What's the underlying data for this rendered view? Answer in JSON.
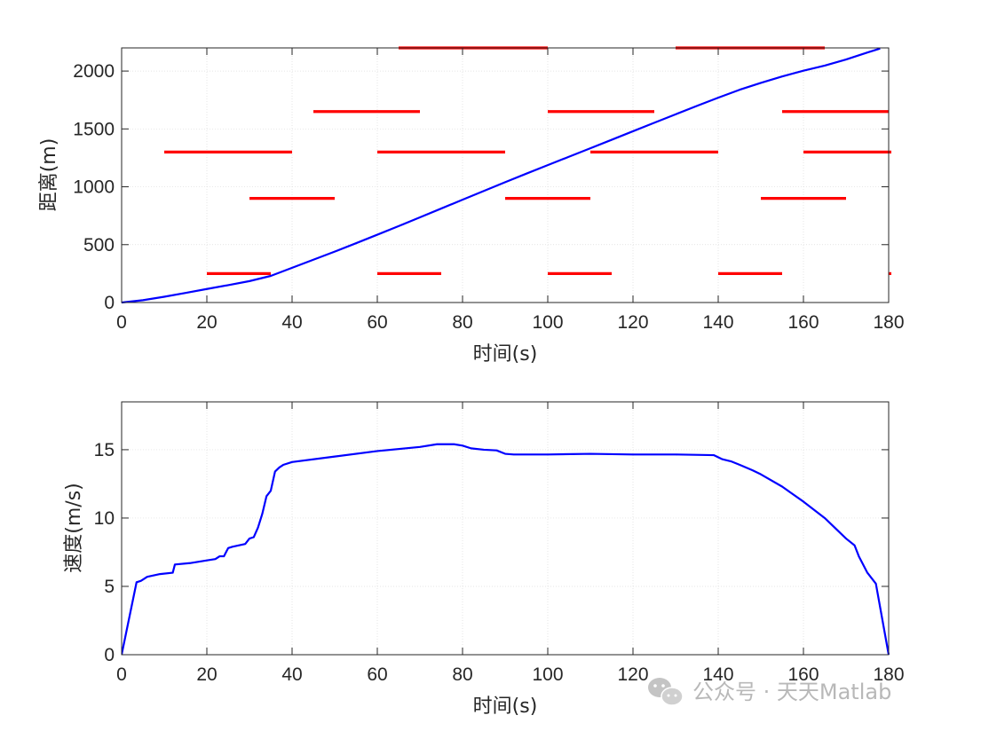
{
  "chart_data": [
    {
      "type": "line",
      "xlabel": "时间(s)",
      "ylabel": "距离(m)",
      "xlim": [
        0,
        180
      ],
      "ylim": [
        0,
        2200
      ],
      "xticks": [
        "0",
        "20",
        "40",
        "60",
        "80",
        "100",
        "120",
        "140",
        "160",
        "180"
      ],
      "yticks": [
        "0",
        "500",
        "1000",
        "1500",
        "2000"
      ],
      "grid": true,
      "series": [
        {
          "color": "#0000ff",
          "x": [
            0,
            5,
            10,
            15,
            20,
            25,
            30,
            35,
            40,
            45,
            50,
            55,
            60,
            65,
            70,
            75,
            80,
            85,
            90,
            95,
            100,
            105,
            110,
            115,
            120,
            125,
            130,
            135,
            140,
            145,
            150,
            155,
            160,
            165,
            170,
            175,
            178
          ],
          "y": [
            0,
            20,
            50,
            83,
            117,
            150,
            185,
            230,
            300,
            370,
            440,
            512,
            586,
            660,
            736,
            812,
            888,
            964,
            1040,
            1114,
            1187,
            1260,
            1333,
            1406,
            1480,
            1553,
            1626,
            1699,
            1770,
            1838,
            1898,
            1953,
            2003,
            2047,
            2100,
            2160,
            2195
          ]
        }
      ],
      "segments": {
        "color": "#ff0000",
        "items": [
          {
            "y": 250,
            "x1": 20,
            "x2": 35
          },
          {
            "y": 250,
            "x1": 60,
            "x2": 75
          },
          {
            "y": 250,
            "x1": 100,
            "x2": 115
          },
          {
            "y": 250,
            "x1": 140,
            "x2": 155
          },
          {
            "y": 250,
            "x1": 180,
            "x2": 181
          },
          {
            "y": 900,
            "x1": 30,
            "x2": 50
          },
          {
            "y": 900,
            "x1": 90,
            "x2": 110
          },
          {
            "y": 900,
            "x1": 150,
            "x2": 170
          },
          {
            "y": 1300,
            "x1": 10,
            "x2": 40
          },
          {
            "y": 1300,
            "x1": 60,
            "x2": 90
          },
          {
            "y": 1300,
            "x1": 110,
            "x2": 140
          },
          {
            "y": 1300,
            "x1": 160,
            "x2": 181
          },
          {
            "y": 1650,
            "x1": 45,
            "x2": 70
          },
          {
            "y": 1650,
            "x1": 100,
            "x2": 125
          },
          {
            "y": 1650,
            "x1": 155,
            "x2": 180
          },
          {
            "y": 2200,
            "x1": 65,
            "x2": 100
          },
          {
            "y": 2200,
            "x1": 130,
            "x2": 165
          }
        ]
      }
    },
    {
      "type": "line",
      "xlabel": "时间(s)",
      "ylabel": "速度(m/s)",
      "xlim": [
        0,
        180
      ],
      "ylim": [
        0,
        18.5
      ],
      "xticks": [
        "0",
        "20",
        "40",
        "60",
        "80",
        "100",
        "120",
        "140",
        "160",
        "180"
      ],
      "yticks": [
        "0",
        "5",
        "10",
        "15"
      ],
      "grid": true,
      "series": [
        {
          "color": "#0000ff",
          "x": [
            0,
            3.5,
            4.5,
            5,
            6,
            9,
            12,
            12.5,
            16,
            20,
            22,
            23,
            24,
            25,
            26,
            29,
            30,
            31,
            32,
            33,
            34,
            35,
            36,
            37,
            38,
            40,
            50,
            60,
            70,
            74,
            78,
            80,
            82,
            85,
            88,
            90,
            92,
            100,
            110,
            120,
            130,
            139,
            141,
            143,
            145,
            148,
            150,
            155,
            160,
            165,
            170,
            172,
            173,
            175,
            177,
            180
          ],
          "y": [
            0,
            5.3,
            5.4,
            5.5,
            5.7,
            5.9,
            6.0,
            6.6,
            6.7,
            6.9,
            7.0,
            7.2,
            7.2,
            7.8,
            7.9,
            8.1,
            8.5,
            8.6,
            9.3,
            10.3,
            11.6,
            12.0,
            13.4,
            13.7,
            13.9,
            14.1,
            14.5,
            14.9,
            15.2,
            15.4,
            15.4,
            15.3,
            15.1,
            15.0,
            14.95,
            14.7,
            14.65,
            14.65,
            14.7,
            14.65,
            14.65,
            14.6,
            14.3,
            14.15,
            13.9,
            13.5,
            13.2,
            12.3,
            11.2,
            10.0,
            8.5,
            8.0,
            7.2,
            6.0,
            5.2,
            0
          ]
        }
      ]
    }
  ],
  "watermark": {
    "text": "公众号 · 天天Matlab",
    "icon": "wechat-icon"
  }
}
